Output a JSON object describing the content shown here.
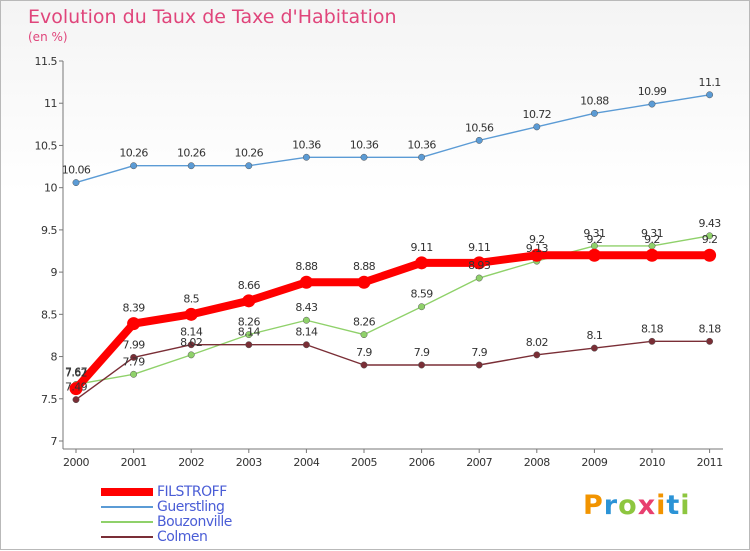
{
  "title": "Evolution du Taux de Taxe d'Habitation",
  "subtitle": "(en %)",
  "logo": {
    "letters": [
      "P",
      "r",
      "o",
      "x",
      "i",
      "t",
      "i"
    ],
    "colors": [
      "#f29400",
      "#2b93d6",
      "#8dc63f",
      "#e83f6f",
      "#f29400",
      "#2b93d6",
      "#8dc63f"
    ]
  },
  "chart_data": {
    "type": "line",
    "title": "Evolution du Taux de Taxe d'Habitation",
    "ylabel": "(en %)",
    "xlabel": "",
    "x": [
      "2000",
      "2001",
      "2002",
      "2003",
      "2004",
      "2005",
      "2006",
      "2007",
      "2008",
      "2009",
      "2010",
      "2011"
    ],
    "ylim": [
      7,
      11.5
    ],
    "yticks": [
      "7",
      "7.5",
      "8",
      "8.5",
      "9",
      "9.5",
      "10",
      "10.5",
      "11",
      "11.5"
    ],
    "grid": false,
    "legend_position": "bottom-left",
    "series": [
      {
        "name": "FILSTROFF",
        "color": "#ff0000",
        "values": [
          7.62,
          8.39,
          8.5,
          8.66,
          8.88,
          8.88,
          9.11,
          9.11,
          9.2,
          9.2,
          9.2,
          9.2
        ],
        "labels": [
          "7.62",
          "8.39",
          "8.5",
          "8.66",
          "8.88",
          "8.88",
          "9.11",
          "9.11",
          "9.2",
          "9.2",
          "9.2",
          "9.2"
        ]
      },
      {
        "name": "Guerstling",
        "color": "#5b9bd5",
        "values": [
          10.06,
          10.26,
          10.26,
          10.26,
          10.36,
          10.36,
          10.36,
          10.56,
          10.72,
          10.88,
          10.99,
          11.1
        ],
        "labels": [
          "10.06",
          "10.26",
          "10.26",
          "10.26",
          "10.36",
          "10.36",
          "10.36",
          "10.56",
          "10.72",
          "10.88",
          "10.99",
          "11.1"
        ]
      },
      {
        "name": "Bouzonville",
        "color": "#8fd16a",
        "values": [
          7.67,
          7.79,
          8.02,
          8.26,
          8.43,
          8.26,
          8.59,
          8.93,
          9.13,
          9.31,
          9.31,
          9.43
        ],
        "labels": [
          "7.67",
          "7.79",
          "8.02",
          "8.26",
          "8.43",
          "8.26",
          "8.59",
          "8.93",
          "9.13",
          "9.31",
          "9.31",
          "9.43"
        ]
      },
      {
        "name": "Colmen",
        "color": "#7a2e36",
        "values": [
          7.49,
          7.99,
          8.14,
          8.14,
          8.14,
          7.9,
          7.9,
          7.9,
          8.02,
          8.1,
          8.18,
          8.18
        ],
        "labels": [
          "7.49",
          "7.99",
          "8.14",
          "8.14",
          "8.14",
          "7.9",
          "7.9",
          "7.9",
          "8.02",
          "8.1",
          "8.18",
          "8.18"
        ]
      }
    ]
  }
}
